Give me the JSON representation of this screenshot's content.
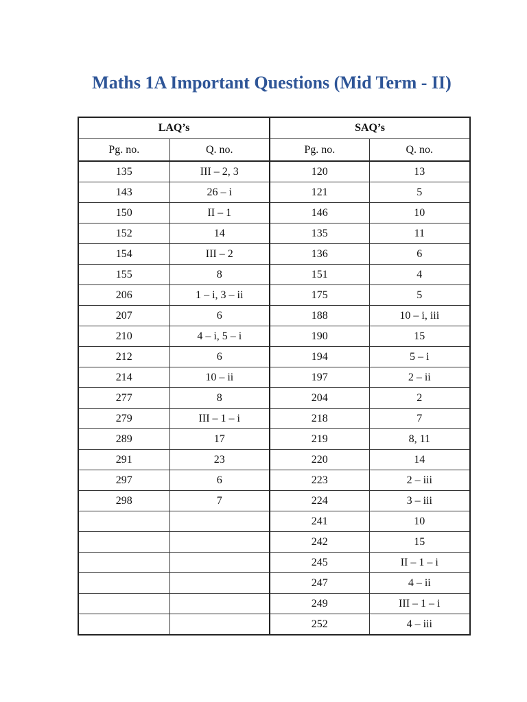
{
  "title": "Maths 1A Important Questions (Mid Term - II)",
  "table": {
    "groups": [
      "LAQ’s",
      "SAQ’s"
    ],
    "columns": [
      "Pg. no.",
      "Q. no.",
      "Pg. no.",
      "Q. no."
    ],
    "rows": [
      [
        "135",
        "III – 2, 3",
        "120",
        "13"
      ],
      [
        "143",
        "26 – i",
        "121",
        "5"
      ],
      [
        "150",
        "II – 1",
        "146",
        "10"
      ],
      [
        "152",
        "14",
        "135",
        "11"
      ],
      [
        "154",
        "III – 2",
        "136",
        "6"
      ],
      [
        "155",
        "8",
        "151",
        "4"
      ],
      [
        "206",
        "1 – i, 3 – ii",
        "175",
        "5"
      ],
      [
        "207",
        "6",
        "188",
        "10 – i, iii"
      ],
      [
        "210",
        "4 – i, 5 – i",
        "190",
        "15"
      ],
      [
        "212",
        "6",
        "194",
        "5 – i"
      ],
      [
        "214",
        "10 – ii",
        "197",
        "2 – ii"
      ],
      [
        "277",
        "8",
        "204",
        "2"
      ],
      [
        "279",
        "III – 1 – i",
        "218",
        "7"
      ],
      [
        "289",
        "17",
        "219",
        "8, 11"
      ],
      [
        "291",
        "23",
        "220",
        "14"
      ],
      [
        "297",
        "6",
        "223",
        "2 – iii"
      ],
      [
        "298",
        "7",
        "224",
        "3 – iii"
      ],
      [
        "",
        "",
        "241",
        "10"
      ],
      [
        "",
        "",
        "242",
        "15"
      ],
      [
        "",
        "",
        "245",
        "II – 1 – i"
      ],
      [
        "",
        "",
        "247",
        "4 – ii"
      ],
      [
        "",
        "",
        "249",
        "III – 1 – i"
      ],
      [
        "",
        "",
        "252",
        "4 – iii"
      ]
    ]
  }
}
